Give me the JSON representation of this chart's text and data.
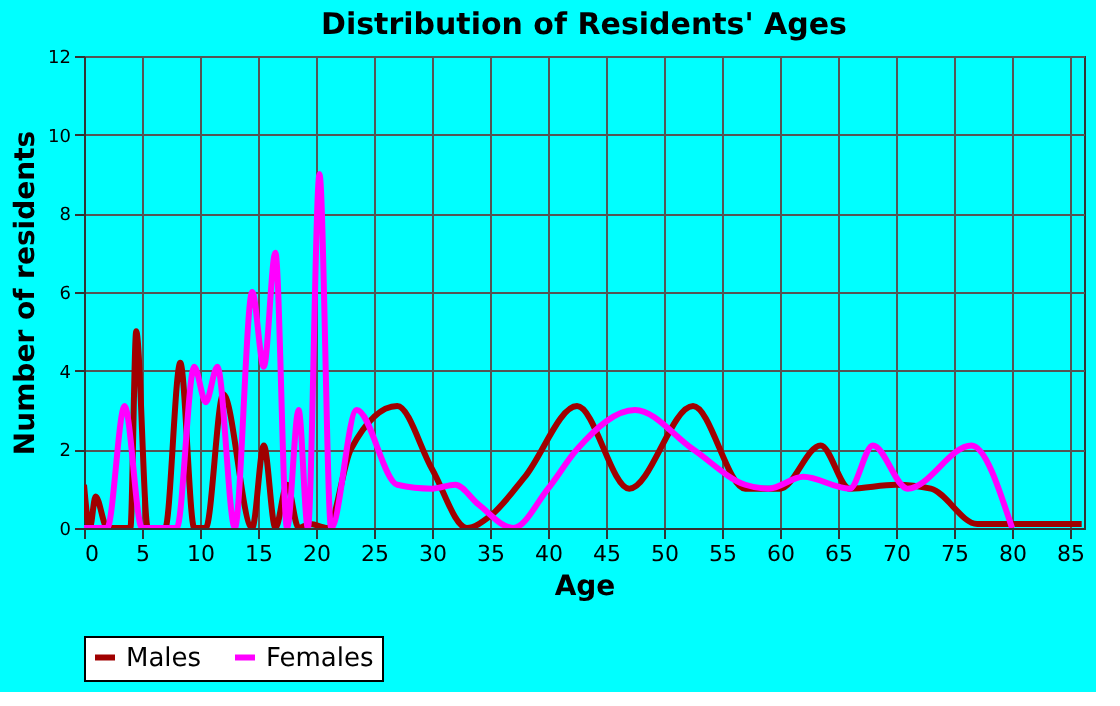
{
  "chart_data": {
    "type": "line",
    "title": "Distribution of Residents' Ages",
    "xlabel": "Age",
    "ylabel": "Number of residents",
    "xlim": [
      0,
      86.2
    ],
    "xticks": [
      0,
      5,
      10,
      15,
      20,
      25,
      30,
      35,
      40,
      45,
      50,
      55,
      60,
      65,
      70,
      75,
      80,
      85
    ],
    "ylim": [
      0,
      12
    ],
    "yticks": [
      0,
      2,
      4,
      6,
      8,
      10,
      12
    ],
    "grid": true,
    "legend": "bottom",
    "series": [
      {
        "name": "Males",
        "color": "#a00000",
        "x": [
          0,
          0.5,
          1,
          2,
          3,
          4,
          4.5,
          5.5,
          7,
          8.3,
          9.5,
          10.5,
          12,
          14.5,
          15.5,
          16.5,
          17.5,
          18.5,
          19.5,
          21,
          23,
          27,
          30,
          33,
          35,
          38,
          42.5,
          47,
          52.5,
          57,
          60,
          63.5,
          66,
          70,
          73,
          77,
          82,
          86
        ],
        "values": [
          1.1,
          0,
          0.8,
          0,
          0,
          0,
          5,
          0,
          0,
          4.2,
          0,
          0,
          3.4,
          0,
          2.1,
          0,
          1.1,
          0,
          0.1,
          0,
          2,
          3.1,
          1.5,
          0,
          0.3,
          1.3,
          3.1,
          1,
          3.1,
          1,
          1,
          2.1,
          1,
          1.1,
          1,
          0.1,
          0.1,
          0.1
        ]
      },
      {
        "name": "Females",
        "color": "#ff00ff",
        "x": [
          0,
          2,
          3.5,
          5,
          6,
          8,
          9.5,
          10.5,
          11.5,
          13,
          14.5,
          15.5,
          16.5,
          17.5,
          18.5,
          19.3,
          20.3,
          21.3,
          23.5,
          27,
          30,
          32,
          34,
          37,
          40,
          42.5,
          47.5,
          52.5,
          57,
          59,
          62,
          66,
          68,
          71,
          76.5,
          80
        ],
        "values": [
          0,
          0,
          3.1,
          0,
          0,
          0,
          4.1,
          3.2,
          4.1,
          0,
          6,
          4.1,
          7,
          0,
          3,
          0,
          9,
          0,
          3,
          1.1,
          1,
          1.1,
          0.6,
          0,
          1,
          2,
          3,
          2,
          1.1,
          1,
          1.3,
          1,
          2.1,
          1,
          2.1,
          0
        ]
      }
    ]
  }
}
